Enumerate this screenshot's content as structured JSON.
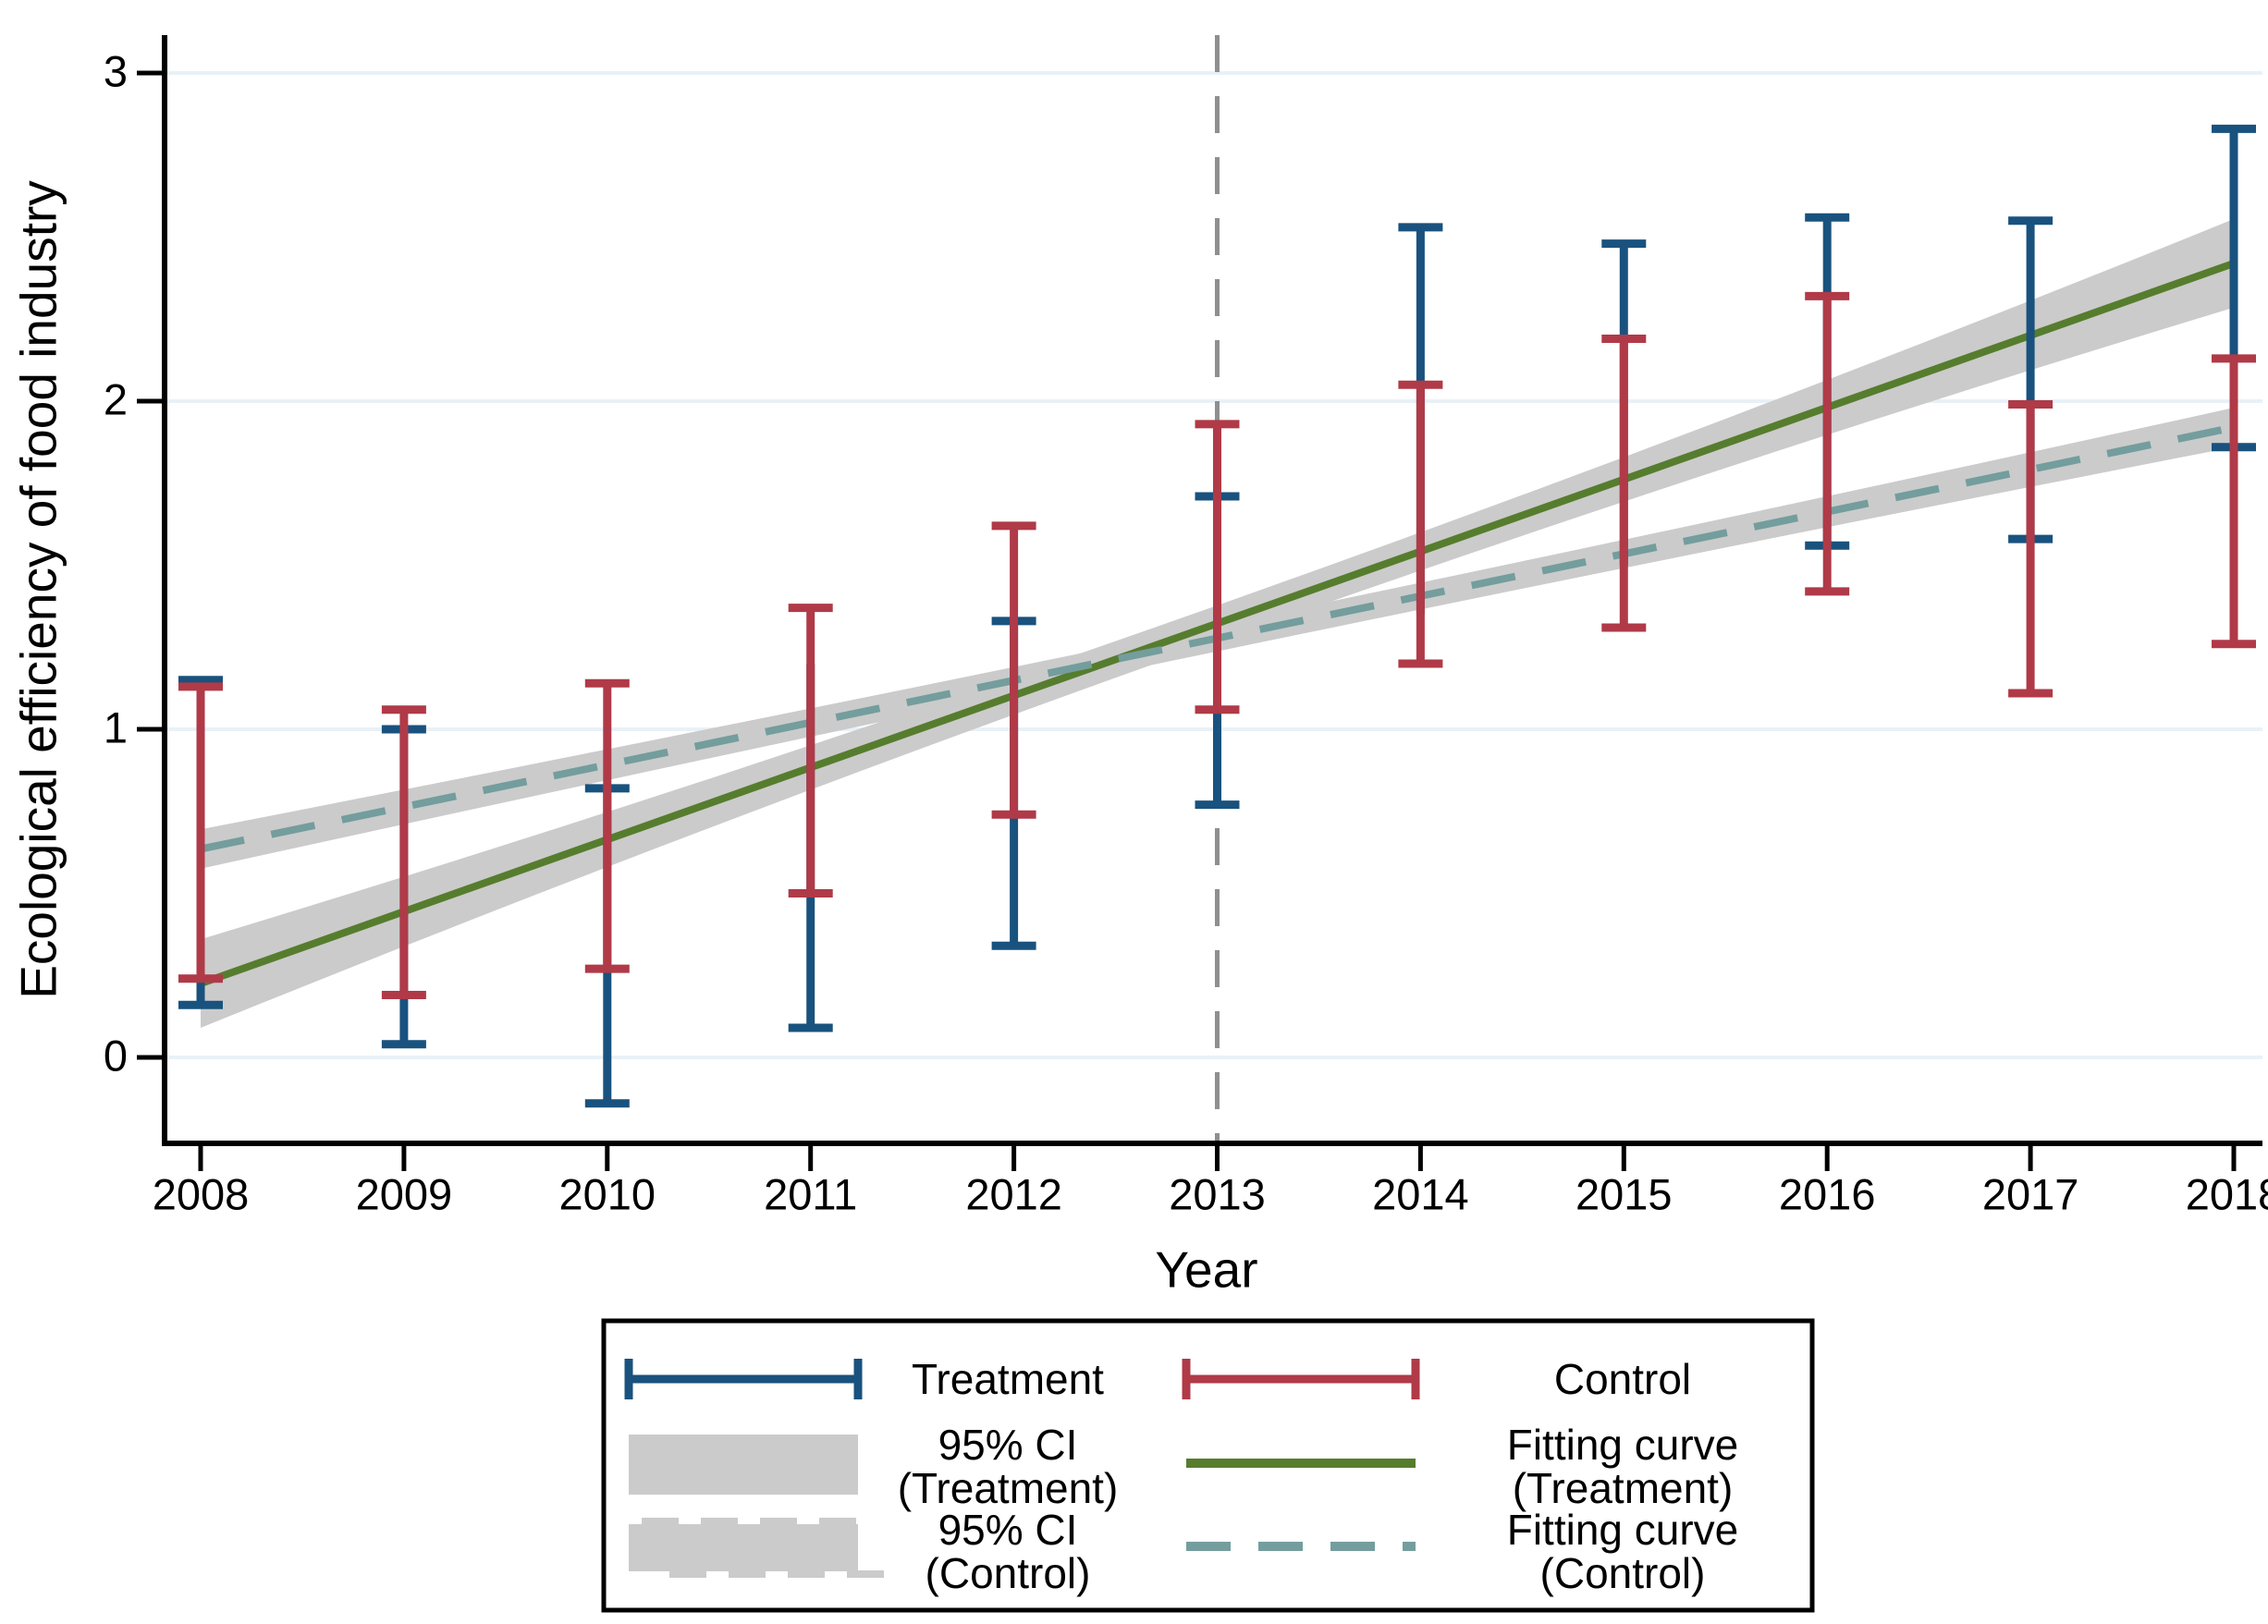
{
  "chart_data": {
    "type": "errorbar-line",
    "title": "",
    "xlabel": "Year",
    "ylabel": "Ecological efficiency of food industry",
    "x_ticks": [
      "2008",
      "2009",
      "2010",
      "2011",
      "2012",
      "2013",
      "2014",
      "2015",
      "2016",
      "2017",
      "2018"
    ],
    "x_values": [
      2008,
      2009,
      2010,
      2011,
      2012,
      2013,
      2014,
      2015,
      2016,
      2017,
      2018
    ],
    "y_ticks": [
      0,
      1,
      2,
      3
    ],
    "y_tick_labels": [
      "0",
      "1",
      "2",
      "3"
    ],
    "ylim": [
      -0.26,
      3.11
    ],
    "xlim": [
      2007.82,
      2018.15
    ],
    "grid": true,
    "legend_position": "bottom",
    "series": [
      {
        "name": "Treatment",
        "type": "errorbar",
        "color": "#19527e",
        "low": [
          0.16,
          0.04,
          -0.14,
          0.09,
          0.34,
          0.77,
          1.35,
          1.5,
          1.56,
          1.58,
          1.86
        ],
        "high": [
          1.15,
          1.0,
          0.82,
          1.2,
          1.33,
          1.71,
          2.53,
          2.48,
          2.56,
          2.55,
          2.83
        ],
        "caps_hidden": [
          {
            "year": 2011,
            "end": "high"
          },
          {
            "year": 2014,
            "end": "low"
          },
          {
            "year": 2015,
            "end": "low"
          }
        ]
      },
      {
        "name": "Control",
        "type": "errorbar",
        "color": "#b03a48",
        "low": [
          0.24,
          0.19,
          0.27,
          0.5,
          0.74,
          1.06,
          1.2,
          1.31,
          1.42,
          1.11,
          1.26
        ],
        "high": [
          1.13,
          1.06,
          1.14,
          1.37,
          1.62,
          1.93,
          2.05,
          2.19,
          2.32,
          1.99,
          2.13
        ],
        "caps_hidden": []
      },
      {
        "name": "Fitting curve (Treatment)",
        "type": "line",
        "style": "solid",
        "color": "#567d2e",
        "x": [
          2008,
          2018
        ],
        "y": [
          0.225,
          2.42
        ],
        "ci_label": "95% CI (Treatment)",
        "ci_color": "#cbcbcb",
        "ci_halfwidth_end": 0.135,
        "ci_halfwidth_mid": 0.055
      },
      {
        "name": "Fitting curve (Control)",
        "type": "line",
        "style": "dashed",
        "color": "#749d9d",
        "x": [
          2008,
          2018
        ],
        "y": [
          0.635,
          1.92
        ],
        "ci_label": "95% CI (Control)",
        "ci_color": "#cbcbcb",
        "ci_halfwidth_end": 0.06,
        "ci_halfwidth_mid": 0.04
      }
    ],
    "vline": {
      "x": 2013,
      "style": "dashed",
      "color": "#8f8f8f"
    },
    "colors": {
      "treatment": "#19527e",
      "control": "#b03a48",
      "fit_treatment": "#567d2e",
      "fit_control": "#749d9d",
      "ci_band": "#cbcbcb",
      "gridline": "#e9f1f7",
      "axis": "#000000",
      "event_line": "#8f8f8f",
      "background": "#ffffff"
    },
    "legend": {
      "entries": [
        {
          "id": "treatment-errorbar",
          "symbol": "errorbar",
          "color": "#19527e",
          "label_lines": [
            "Treatment"
          ],
          "col": 0,
          "row": 0
        },
        {
          "id": "control-errorbar",
          "symbol": "errorbar",
          "color": "#b03a48",
          "label_lines": [
            "Control"
          ],
          "col": 1,
          "row": 0
        },
        {
          "id": "ci-treatment",
          "symbol": "band",
          "color": "#cbcbcb",
          "label_lines": [
            "95% CI",
            "(Treatment)"
          ],
          "col": 0,
          "row": 1
        },
        {
          "id": "fit-treatment",
          "symbol": "line",
          "color": "#567d2e",
          "label_lines": [
            "Fitting curve",
            "(Treatment)"
          ],
          "col": 1,
          "row": 1
        },
        {
          "id": "ci-control",
          "symbol": "band-dashed",
          "color": "#cbcbcb",
          "label_lines": [
            "95% CI",
            "(Control)"
          ],
          "col": 0,
          "row": 2
        },
        {
          "id": "fit-control",
          "symbol": "dashed-line",
          "color": "#749d9d",
          "label_lines": [
            "Fitting curve",
            "(Control)"
          ],
          "col": 1,
          "row": 2
        }
      ]
    }
  }
}
